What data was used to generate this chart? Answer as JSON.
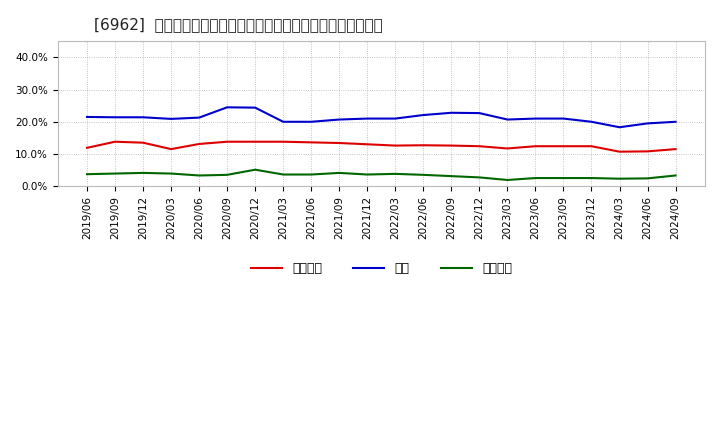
{
  "title": "[6962]  売上債権、在庫、買入債務の総資産に対する比率の推移",
  "x_labels": [
    "2019/06",
    "2019/09",
    "2019/12",
    "2020/03",
    "2020/06",
    "2020/09",
    "2020/12",
    "2021/03",
    "2021/06",
    "2021/09",
    "2021/12",
    "2022/03",
    "2022/06",
    "2022/09",
    "2022/12",
    "2023/03",
    "2023/06",
    "2023/09",
    "2023/12",
    "2024/03",
    "2024/06",
    "2024/09"
  ],
  "receivables": [
    0.119,
    0.138,
    0.135,
    0.115,
    0.131,
    0.138,
    0.138,
    0.138,
    0.136,
    0.134,
    0.13,
    0.126,
    0.127,
    0.126,
    0.124,
    0.117,
    0.124,
    0.124,
    0.124,
    0.107,
    0.108,
    0.115
  ],
  "inventory": [
    0.215,
    0.214,
    0.214,
    0.209,
    0.213,
    0.245,
    0.244,
    0.2,
    0.2,
    0.207,
    0.21,
    0.21,
    0.221,
    0.228,
    0.227,
    0.207,
    0.21,
    0.21,
    0.2,
    0.183,
    0.195,
    0.2
  ],
  "payables": [
    0.037,
    0.039,
    0.041,
    0.039,
    0.033,
    0.035,
    0.051,
    0.036,
    0.036,
    0.041,
    0.036,
    0.038,
    0.035,
    0.031,
    0.027,
    0.019,
    0.025,
    0.025,
    0.025,
    0.023,
    0.024,
    0.033
  ],
  "receivables_color": "#dd0000",
  "inventory_color": "#0000cc",
  "payables_color": "#006600",
  "legend_label_receivables": "売上債権",
  "legend_label_inventory": "在庫",
  "legend_label_payables": "買入債務",
  "ylim": [
    0.0,
    0.45
  ],
  "yticks": [
    0.0,
    0.1,
    0.2,
    0.3,
    0.4
  ],
  "background_color": "#ffffff",
  "plot_bg_color": "#ffffff",
  "grid_color": "#aaaaaa",
  "title_fontsize": 11,
  "tick_fontsize": 7.5,
  "legend_fontsize": 9,
  "line_width": 1.5
}
